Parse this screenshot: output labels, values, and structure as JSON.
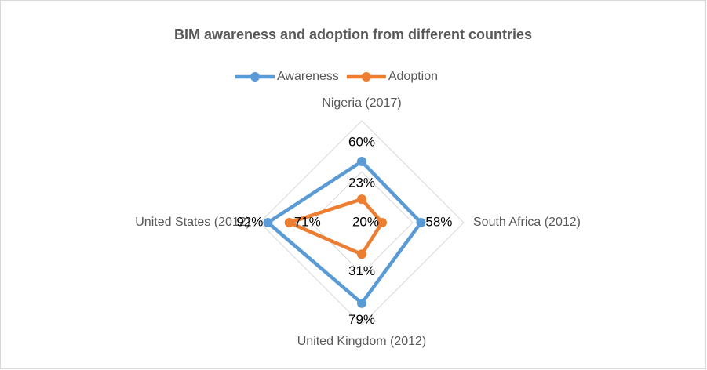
{
  "chart_data": {
    "type": "radar",
    "title": "BIM awareness and adoption from different countries",
    "categories": [
      "Nigeria (2017)",
      "South Africa (2012)",
      "United Kingdom (2012)",
      "United States (2012)"
    ],
    "series": [
      {
        "name": "Awareness",
        "color": "#5b9bd5",
        "values": [
          60,
          58,
          79,
          92
        ],
        "value_labels": [
          "60%",
          "58%",
          "79%",
          "92%"
        ]
      },
      {
        "name": "Adoption",
        "color": "#ed7d31",
        "values": [
          23,
          20,
          31,
          71
        ],
        "value_labels": [
          "23%",
          "20%",
          "31%",
          "71%"
        ]
      }
    ],
    "ylim": [
      0,
      100
    ],
    "yticks": [
      0,
      50,
      100
    ],
    "grid": true,
    "legend": "top"
  }
}
